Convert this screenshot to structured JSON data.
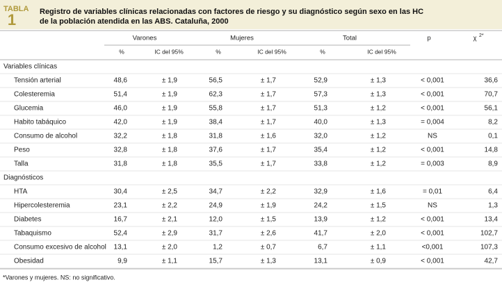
{
  "header": {
    "tabla": "TABLA",
    "number": "1",
    "title_lines": [
      "Registro de variables clínicas relacionadas con factores de riesgo y su diagnóstico según sexo en las HC",
      "de la población atendida en las ABS. Cataluña, 2000"
    ]
  },
  "table": {
    "groups": [
      "Varones",
      "Mujeres",
      "Total"
    ],
    "p": "p",
    "chi": "χ",
    "chi_sup": "2*",
    "subheaders": [
      "%",
      "IC del 95%",
      "%",
      "IC del 95%",
      "%",
      "IC del 95%"
    ],
    "sections": [
      {
        "title": "Variables clínicas",
        "rows": [
          [
            "Tensión arterial",
            "48,6",
            "± 1,9",
            "56,5",
            "± 1,7",
            "52,9",
            "± 1,3",
            "< 0,001",
            "36,6"
          ],
          [
            "Colesteremia",
            "51,4",
            "± 1,9",
            "62,3",
            "± 1,7",
            "57,3",
            "± 1,3",
            "< 0,001",
            "70,7"
          ],
          [
            "Glucemia",
            "46,0",
            "± 1,9",
            "55,8",
            "± 1,7",
            "51,3",
            "± 1,2",
            "< 0,001",
            "56,1"
          ],
          [
            "Habito tabáquico",
            "42,0",
            "± 1,9",
            "38,4",
            "± 1,7",
            "40,0",
            "± 1,3",
            "= 0,004",
            "8,2"
          ],
          [
            "Consumo de alcohol",
            "32,2",
            "± 1,8",
            "31,8",
            "± 1,6",
            "32,0",
            "± 1,2",
            "NS",
            "0,1"
          ],
          [
            "Peso",
            "32,8",
            "± 1,8",
            "37,6",
            "± 1,7",
            "35,4",
            "± 1,2",
            "< 0,001",
            "14,8"
          ],
          [
            "Talla",
            "31,8",
            "± 1,8",
            "35,5",
            "± 1,7",
            "33,8",
            "± 1,2",
            "= 0,003",
            "8,9"
          ]
        ]
      },
      {
        "title": "Diagnósticos",
        "rows": [
          [
            "HTA",
            "30,4",
            "± 2,5",
            "34,7",
            "± 2,2",
            "32,9",
            "± 1,6",
            "= 0,01",
            "6,4"
          ],
          [
            "Hipercolesteremia",
            "23,1",
            "± 2,2",
            "24,9",
            "± 1,9",
            "24,2",
            "± 1,5",
            "NS",
            "1,3"
          ],
          [
            "Diabetes",
            "16,7",
            "± 2,1",
            "12,0",
            "± 1,5",
            "13,9",
            "± 1,2",
            "< 0,001",
            "13,4"
          ],
          [
            "Tabaquismo",
            "52,4",
            "± 2,9",
            "31,7",
            "± 2,6",
            "41,7",
            "± 2,0",
            "< 0,001",
            "102,7"
          ],
          [
            "Consumo excesivo de alcohol",
            "13,1",
            "± 2,0",
            "1,2",
            "± 0,7",
            "6,7",
            "± 1,1",
            "<0,001",
            "107,3"
          ],
          [
            "Obesidad",
            "9,9",
            "± 1,1",
            "15,7",
            "± 1,3",
            "13,1",
            "± 0,9",
            "< 0,001",
            "42,7"
          ]
        ]
      }
    ]
  },
  "footnote": "*Varones y mujeres. NS: no significativo."
}
